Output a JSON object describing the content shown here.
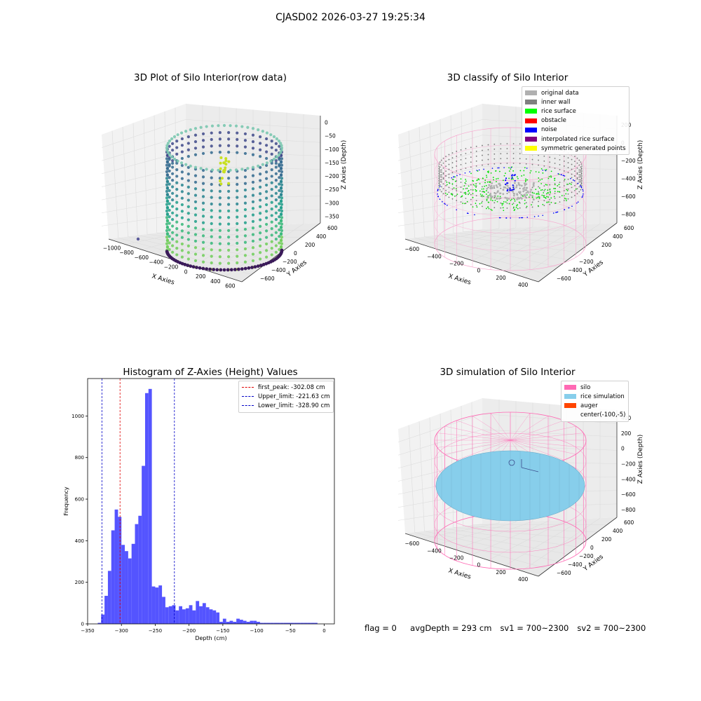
{
  "figure": {
    "title": "CJASD02 2026-03-27 19:25:34"
  },
  "panels": {
    "raw": {
      "title": "3D Plot of Silo Interior(row data)"
    },
    "classify": {
      "title": "3D classify of Silo Interior"
    },
    "histogram": {
      "title": "Histogram of Z-Axies (Height) Values"
    },
    "simulation": {
      "title": "3D simulation of Silo Interior"
    }
  },
  "status": {
    "flag": "flag = 0",
    "avg_depth": "avgDepth = 293 cm",
    "sv1": "sv1 = 700~2300",
    "sv2": "sv2 = 700~2300"
  },
  "colors": {
    "hist_bar": "#4b4bff",
    "first_peak": "#e00000",
    "limit": "#0000c8",
    "silo": "#ff69b4",
    "rice_sim": "#87ceeb",
    "auger": "#ff4500"
  },
  "chart_data": [
    {
      "type": "scatter",
      "title": "3D Plot of Silo Interior(row data)",
      "xlabel": "X Axies",
      "ylabel": "Y Axies",
      "zlabel": "Z Axies (Depth)",
      "x_ticks": [
        "−1000",
        "−800",
        "−600",
        "−400",
        "−200",
        "0",
        "200",
        "400",
        "600"
      ],
      "y_ticks": [
        "600",
        "400",
        "200",
        "0",
        "−200",
        "−400",
        "−600"
      ],
      "z_ticks": [
        "0",
        "−50",
        "−100",
        "−150",
        "−200",
        "−250",
        "−300",
        "−350"
      ],
      "colormap": "viridis",
      "grid": true
    },
    {
      "type": "scatter",
      "title": "3D classify of Silo Interior",
      "xlabel": "X Axies",
      "ylabel": "Y Axies",
      "zlabel": "Z Axies (Depth)",
      "x_ticks": [
        "−600",
        "−400",
        "−200",
        "0",
        "200",
        "400"
      ],
      "y_ticks": [
        "600",
        "400",
        "200",
        "0",
        "−200",
        "−400",
        "−600"
      ],
      "z_ticks": [
        "200",
        "0",
        "−200",
        "−400",
        "−600",
        "−800"
      ],
      "legend": [
        {
          "label": "original data",
          "color": "#b0b0b0"
        },
        {
          "label": "inner wall",
          "color": "#808080"
        },
        {
          "label": "rice surface",
          "color": "#00ff00"
        },
        {
          "label": "obstacle",
          "color": "#ff0000"
        },
        {
          "label": "noise",
          "color": "#0000ff"
        },
        {
          "label": "interpolated rice surface",
          "color": "#800080"
        },
        {
          "label": "symmetric generated points",
          "color": "#ffff00"
        }
      ],
      "legend_position": "upper-right",
      "grid": true
    },
    {
      "type": "bar",
      "title": "Histogram of Z-Axies (Height) Values",
      "xlabel": "Depth (cm)",
      "ylabel": "Frequency",
      "bin_width": 5,
      "bin_starts": [
        -335,
        -330,
        -325,
        -320,
        -315,
        -310,
        -305,
        -300,
        -295,
        -290,
        -285,
        -280,
        -275,
        -270,
        -265,
        -260,
        -255,
        -250,
        -245,
        -240,
        -235,
        -230,
        -225,
        -220,
        -215,
        -210,
        -205,
        -200,
        -195,
        -190,
        -185,
        -180,
        -175,
        -170,
        -165,
        -160,
        -155,
        -150,
        -145,
        -140,
        -135,
        -130,
        -125,
        -120,
        -115,
        -110,
        -105,
        -100,
        -95,
        -90,
        -85,
        -80,
        -75,
        -70,
        -65,
        -60,
        -55,
        -50,
        -45,
        -40,
        -35,
        -30,
        -25,
        -20,
        -15
      ],
      "values": [
        5,
        45,
        135,
        255,
        450,
        550,
        515,
        380,
        350,
        315,
        385,
        480,
        520,
        760,
        1110,
        1130,
        180,
        175,
        185,
        130,
        80,
        85,
        90,
        65,
        85,
        70,
        75,
        90,
        65,
        110,
        85,
        100,
        80,
        70,
        65,
        55,
        10,
        25,
        10,
        15,
        10,
        25,
        20,
        15,
        10,
        15,
        15,
        10,
        5,
        5,
        5,
        5,
        5,
        5,
        5,
        5,
        5,
        5,
        5,
        5,
        5,
        5,
        5,
        5,
        5
      ],
      "xlim": [
        -350,
        15
      ],
      "ylim": [
        0,
        1180
      ],
      "x_ticks": [
        -350,
        -300,
        -250,
        -200,
        -150,
        -100,
        -50,
        0
      ],
      "x_tick_labels": [
        "−350",
        "−300",
        "−250",
        "−200",
        "−150",
        "−100",
        "−50",
        "0"
      ],
      "y_ticks": [
        0,
        200,
        400,
        600,
        800,
        1000
      ],
      "y_tick_labels": [
        "0",
        "200",
        "400",
        "600",
        "800",
        "1000"
      ],
      "reference_lines": [
        {
          "label": "first_peak: -302.08 cm",
          "x": -302.08,
          "color": "#e00000",
          "style": "dashed"
        },
        {
          "label": "Upper_limit: -221.63 cm",
          "x": -221.63,
          "color": "#0000c8",
          "style": "dashed"
        },
        {
          "label": "Lower_limit: -328.90 cm",
          "x": -328.9,
          "color": "#0000c8",
          "style": "dashed"
        }
      ],
      "legend_position": "upper-right",
      "grid": false
    },
    {
      "type": "scatter",
      "title": "3D simulation of Silo Interior",
      "xlabel": "X Axies",
      "ylabel": "Y Axies",
      "zlabel": "Z Axies (Depth)",
      "x_ticks": [
        "−600",
        "−400",
        "−200",
        "0",
        "200",
        "400"
      ],
      "y_ticks": [
        "600",
        "400",
        "200",
        "0",
        "−200",
        "−400",
        "−600"
      ],
      "z_ticks": [
        "400",
        "200",
        "0",
        "−200",
        "−400",
        "−600",
        "−800"
      ],
      "legend": [
        {
          "label": "silo",
          "color": "#ff69b4"
        },
        {
          "label": "rice simulation",
          "color": "#87ceeb"
        },
        {
          "label": "auger",
          "color": "#ff4500"
        },
        {
          "label": "center(-100,-5)",
          "color": ""
        }
      ],
      "legend_position": "upper-right",
      "grid": true
    }
  ]
}
